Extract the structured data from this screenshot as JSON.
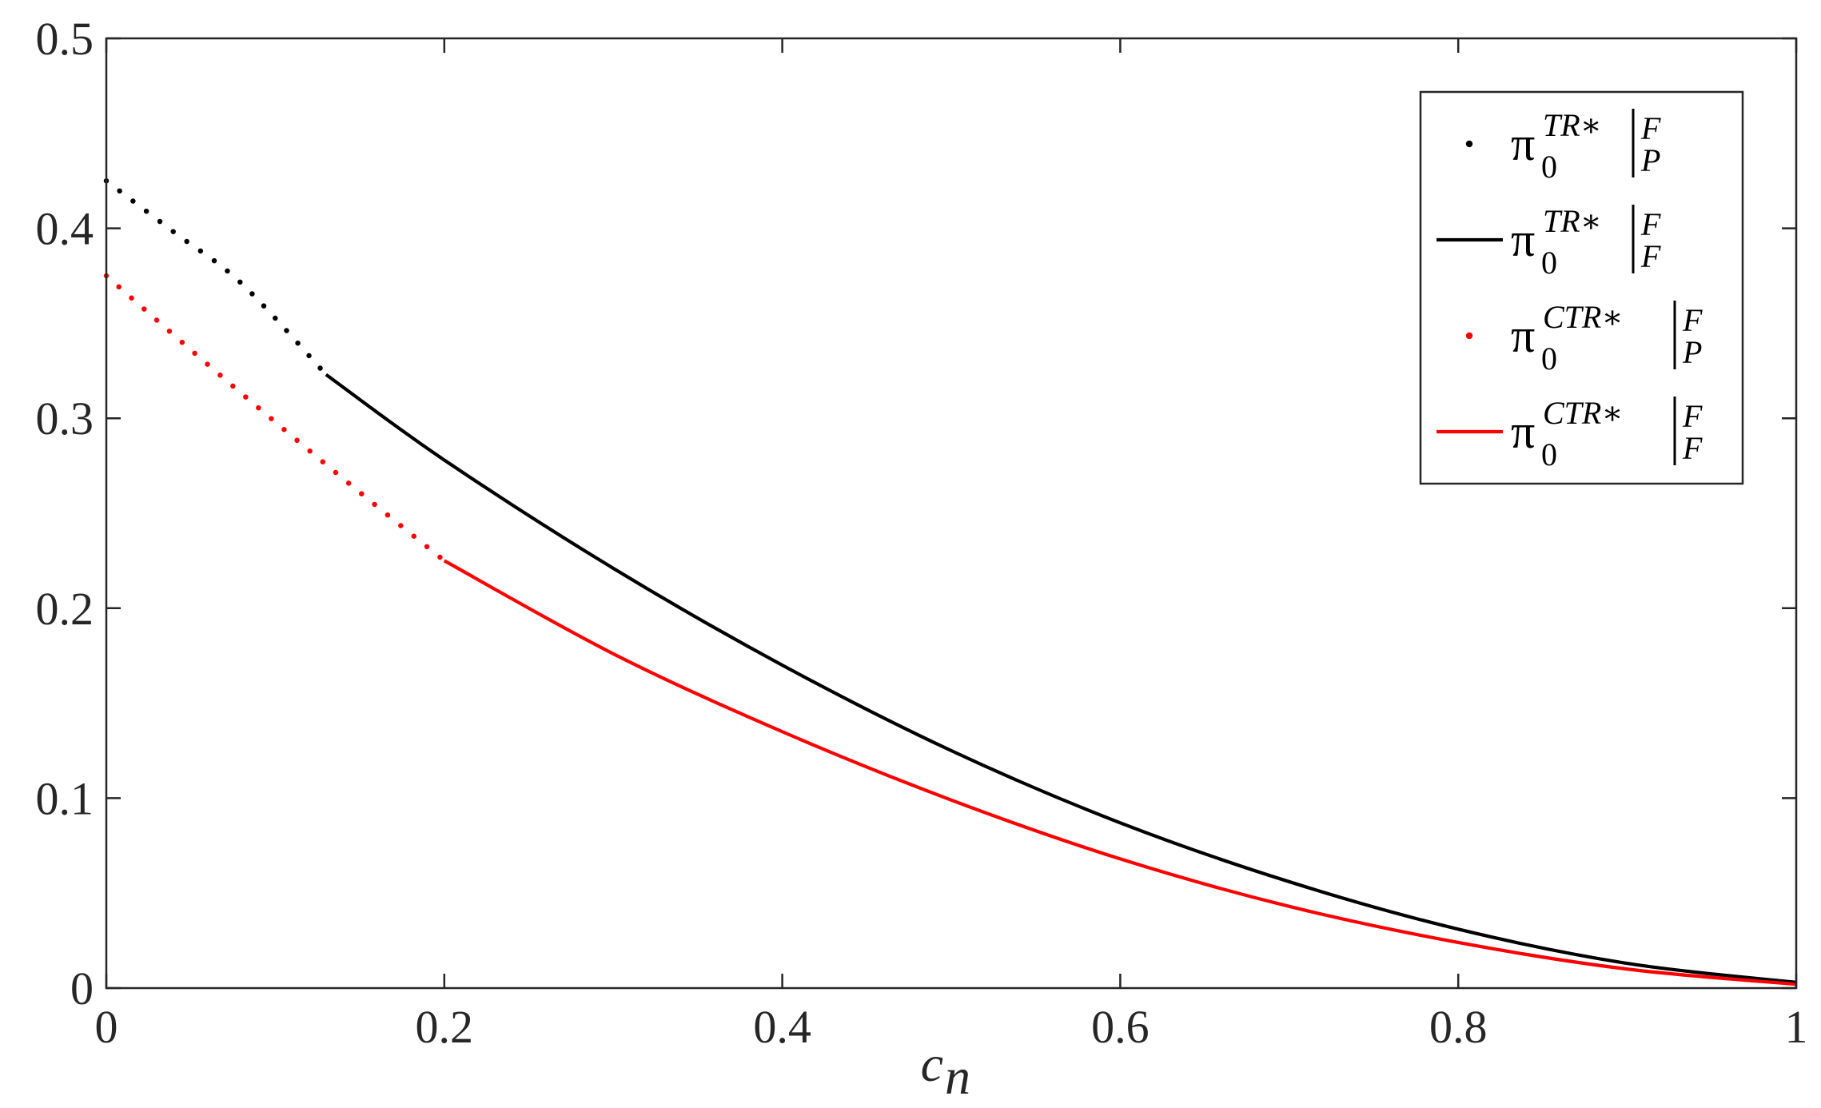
{
  "chart_data": {
    "type": "line",
    "xlabel": "c_n",
    "xlabel_main": "c",
    "xlabel_sub": "n",
    "ylabel": "",
    "xlim": [
      0,
      1
    ],
    "ylim": [
      0,
      0.5
    ],
    "x_ticks": [
      "0",
      "0.2",
      "0.4",
      "0.6",
      "0.8",
      "1"
    ],
    "y_ticks": [
      "0",
      "0.1",
      "0.2",
      "0.3",
      "0.4",
      "0.5"
    ],
    "grid": false,
    "legend_position": "top-right",
    "series": [
      {
        "name": "π0TR*|FP",
        "legend": {
          "base": "π",
          "sub": "0",
          "sup": "TR∗",
          "bar_top": "F",
          "bar_bottom": "P"
        },
        "style": "dotted",
        "color": "#000000",
        "points": [
          [
            0,
            0.425
          ],
          [
            0.04,
            0.398
          ],
          [
            0.08,
            0.371
          ],
          [
            0.13,
            0.323
          ]
        ]
      },
      {
        "name": "π0TR*|FF",
        "legend": {
          "base": "π",
          "sub": "0",
          "sup": "TR∗",
          "bar_top": "F",
          "bar_bottom": "F"
        },
        "style": "solid",
        "color": "#000000",
        "points": [
          [
            0.13,
            0.323
          ],
          [
            0.2,
            0.278
          ],
          [
            0.3,
            0.221
          ],
          [
            0.4,
            0.17
          ],
          [
            0.5,
            0.125
          ],
          [
            0.6,
            0.087
          ],
          [
            0.7,
            0.056
          ],
          [
            0.8,
            0.031
          ],
          [
            0.9,
            0.013
          ],
          [
            1.0,
            0.003
          ]
        ]
      },
      {
        "name": "π0CTR*|FP",
        "legend": {
          "base": "π",
          "sub": "0",
          "sup": "CTR∗",
          "bar_top": "F",
          "bar_bottom": "P"
        },
        "style": "dotted",
        "color": "#ff0000",
        "points": [
          [
            0,
            0.375
          ],
          [
            0.05,
            0.336
          ],
          [
            0.1,
            0.298
          ],
          [
            0.15,
            0.261
          ],
          [
            0.2,
            0.225
          ]
        ]
      },
      {
        "name": "π0CTR*|FF",
        "legend": {
          "base": "π",
          "sub": "0",
          "sup": "CTR∗",
          "bar_top": "F",
          "bar_bottom": "F"
        },
        "style": "solid",
        "color": "#ff0000",
        "points": [
          [
            0.2,
            0.225
          ],
          [
            0.3,
            0.176
          ],
          [
            0.4,
            0.135
          ],
          [
            0.5,
            0.099
          ],
          [
            0.6,
            0.068
          ],
          [
            0.7,
            0.043
          ],
          [
            0.8,
            0.024
          ],
          [
            0.9,
            0.01
          ],
          [
            1.0,
            0.002
          ]
        ]
      }
    ]
  }
}
